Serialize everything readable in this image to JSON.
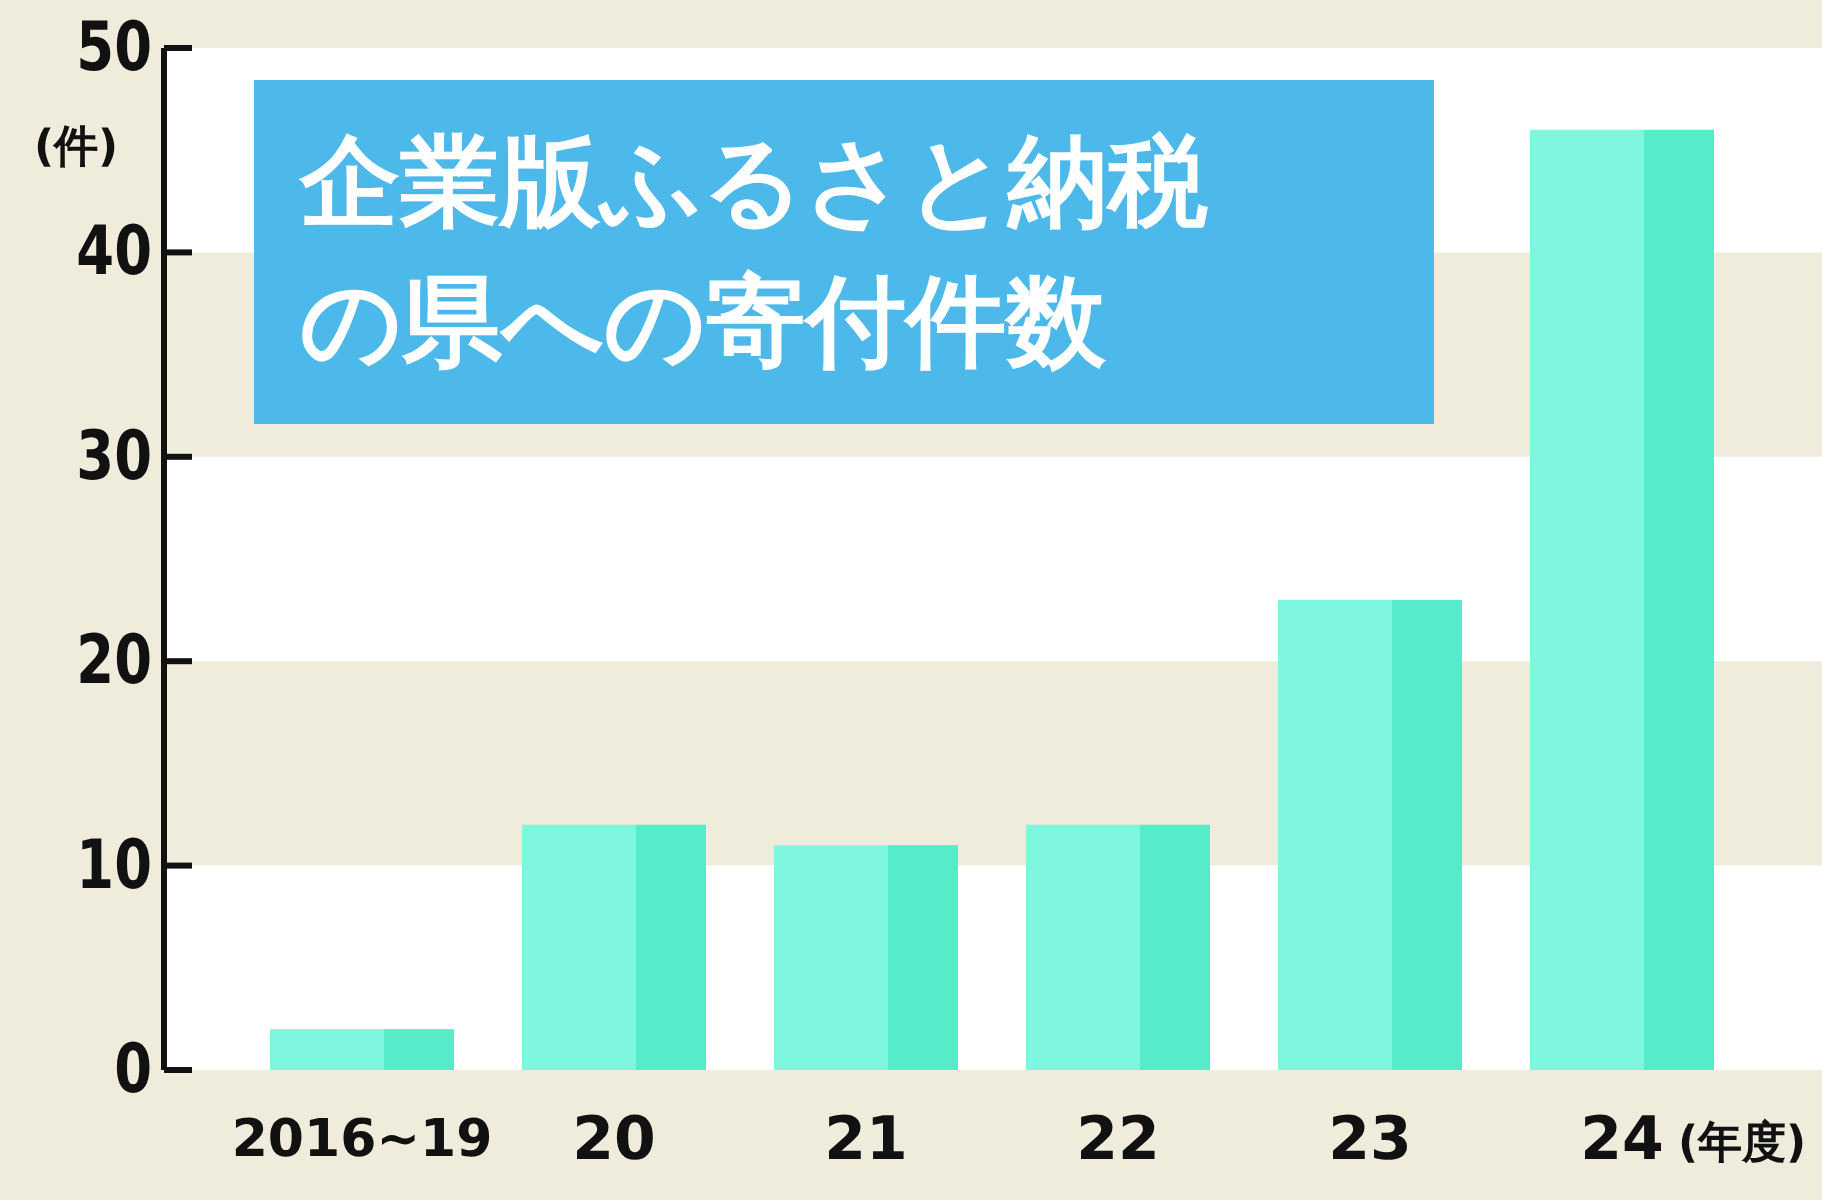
{
  "chart_data": {
    "type": "bar",
    "title": "企業版ふるさと納税の県への寄付件数",
    "categories": [
      "2016~19",
      "20",
      "21",
      "22",
      "23",
      "24"
    ],
    "values": [
      2,
      12,
      11,
      12,
      23,
      46
    ],
    "color": "#7ef7de",
    "ylim": [
      0,
      50
    ],
    "yticks": [
      0,
      10,
      20,
      30,
      40,
      50
    ],
    "ylabel": "(件)",
    "xlabel": "(年度)",
    "bands": [
      {
        "axis": "y",
        "from": 10,
        "to": 20,
        "color": "#efecdc"
      },
      {
        "axis": "y",
        "from": 30,
        "to": 40,
        "color": "#efecdc"
      }
    ]
  }
}
